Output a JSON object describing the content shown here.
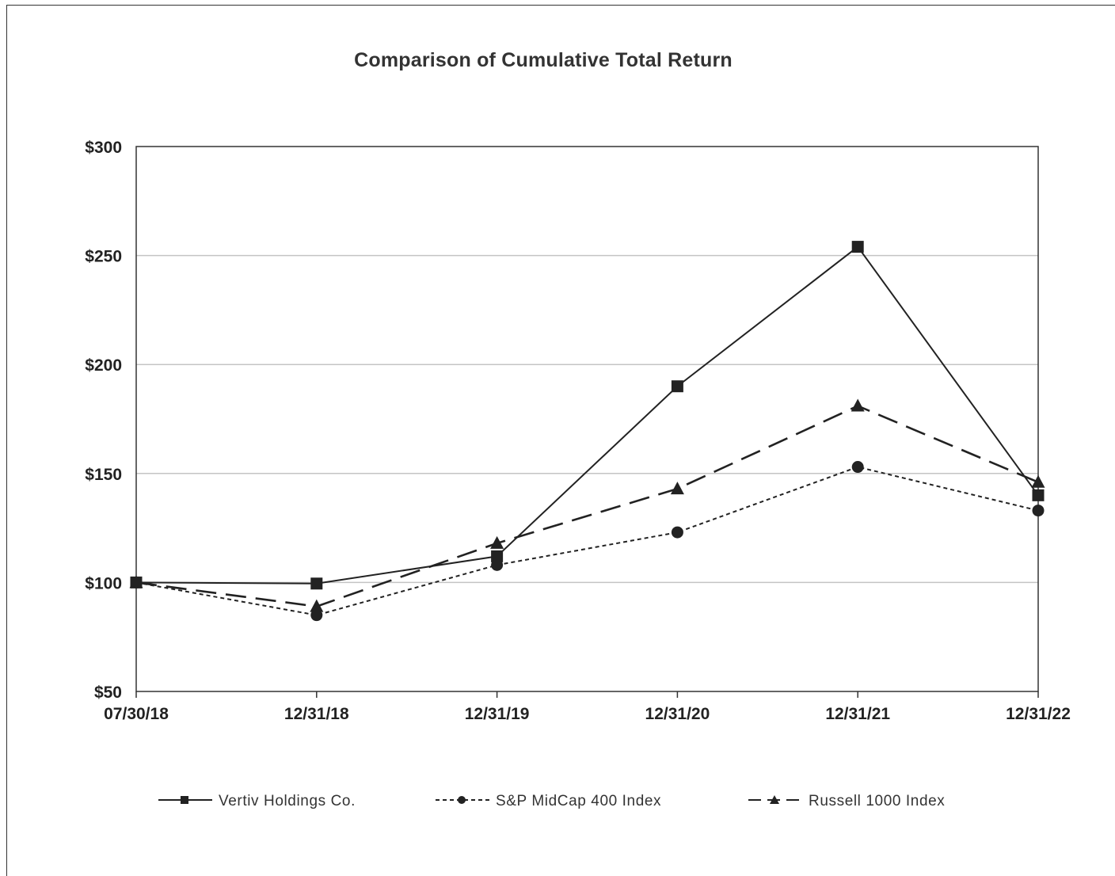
{
  "chart_data": {
    "type": "line",
    "title": "Comparison of Cumulative Total Return",
    "xlabel": "",
    "ylabel": "",
    "categories": [
      "07/30/18",
      "12/31/18",
      "12/31/19",
      "12/31/20",
      "12/31/21",
      "12/31/22"
    ],
    "yticks": [
      "$50",
      "$100",
      "$150",
      "$200",
      "$250",
      "$300"
    ],
    "ylim": [
      50,
      300
    ],
    "grid": "horizontal",
    "legend_position": "bottom",
    "series": [
      {
        "name": "Vertiv Holdings Co.",
        "marker": "square",
        "dash": "solid",
        "color": "#222222",
        "values": [
          100,
          99.5,
          112,
          190,
          254,
          140
        ]
      },
      {
        "name": "S&P MidCap 400 Index",
        "marker": "circle",
        "dash": "dotted",
        "color": "#222222",
        "values": [
          100,
          85,
          108,
          123,
          153,
          133
        ]
      },
      {
        "name": "Russell 1000 Index",
        "marker": "triangle",
        "dash": "dashed",
        "color": "#222222",
        "values": [
          100,
          89,
          118,
          143,
          181,
          146
        ]
      }
    ]
  }
}
